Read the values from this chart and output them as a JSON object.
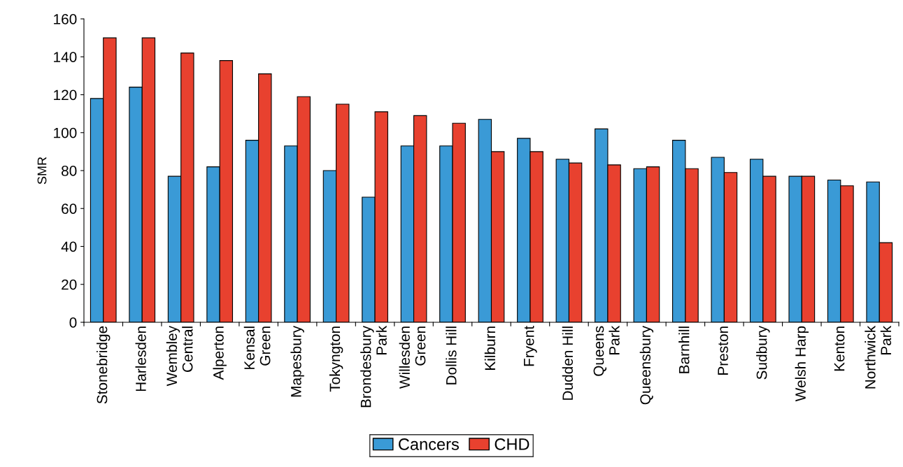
{
  "chart_data": {
    "type": "bar",
    "ylabel": "SMR",
    "categories": [
      "Stonebridge",
      "Harlesden",
      "Wembley\nCentral",
      "Alperton",
      "Kensal\nGreen",
      "Mapesbury",
      "Tokyngton",
      "Brondesbury\nPark",
      "Willesden\nGreen",
      "Dollis Hill",
      "Kilburn",
      "Fryent",
      "Dudden Hill",
      "Queens\nPark",
      "Queensbury",
      "Barnhill",
      "Preston",
      "Sudbury",
      "Welsh Harp",
      "Kenton",
      "Northwick\nPark"
    ],
    "series": [
      {
        "name": "Cancers",
        "color": "#3a9ad6",
        "values": [
          118,
          124,
          77,
          82,
          96,
          93,
          80,
          66,
          93,
          93,
          107,
          97,
          86,
          102,
          81,
          96,
          87,
          86,
          77,
          75,
          74
        ]
      },
      {
        "name": "CHD",
        "color": "#e8412f",
        "values": [
          150,
          150,
          142,
          138,
          131,
          119,
          115,
          111,
          109,
          105,
          90,
          90,
          84,
          83,
          82,
          81,
          79,
          77,
          77,
          72,
          42
        ]
      }
    ],
    "ylim": [
      0,
      160
    ],
    "yticks": [
      0,
      20,
      40,
      60,
      80,
      100,
      120,
      140,
      160
    ],
    "grid": false,
    "legend": "bottom"
  }
}
